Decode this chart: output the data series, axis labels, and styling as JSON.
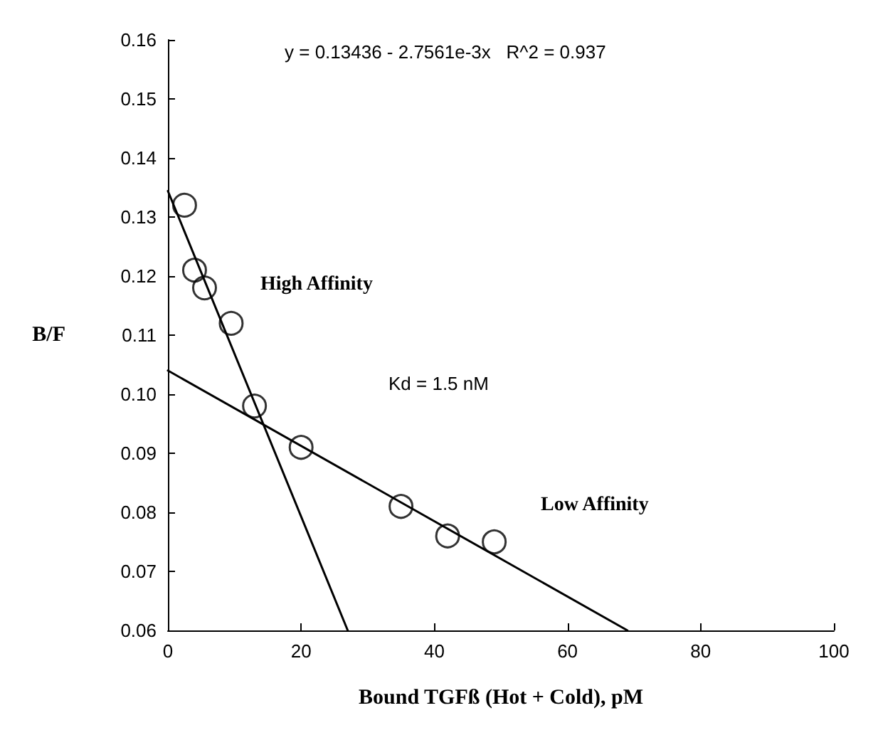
{
  "chart_data": {
    "type": "scatter",
    "xlabel": "Bound TGFß (Hot + Cold), pM",
    "ylabel": "B/F",
    "marker": "circle",
    "grid": false,
    "xlim": [
      0,
      100
    ],
    "xticks": [
      0,
      20,
      40,
      60,
      80,
      100
    ],
    "ylim": [
      0.06,
      0.16
    ],
    "yticks": [
      0.06,
      0.07,
      0.08,
      0.09,
      {
        "value": 0.1,
        "label": "0.10"
      },
      0.11,
      0.12,
      0.13,
      0.14,
      0.15,
      0.16
    ],
    "x": [
      2.5,
      4,
      5.5,
      9.5,
      13,
      20,
      35,
      42,
      49
    ],
    "series": [
      {
        "color": "#000000",
        "values": [
          0.132,
          0.121,
          0.118,
          0.112,
          0.098,
          0.091,
          0.081,
          0.076,
          0.075
        ]
      },
      {
        "type": "line",
        "color": "#000000",
        "line_style": "solid",
        "marker": "none",
        "x": [
          0,
          27
        ],
        "values": [
          0.1344,
          0.06
        ]
      },
      {
        "type": "line",
        "color": "#000000",
        "line_style": "solid",
        "marker": "none",
        "x": [
          0,
          69
        ],
        "values": [
          0.104,
          0.06
        ]
      }
    ],
    "annotations": [
      "y = 0.13436 - 2.7561e-3x   R^2 = 0.937",
      "High Affinity",
      "Kd = 1.5 nM",
      "Low Affinity"
    ]
  }
}
